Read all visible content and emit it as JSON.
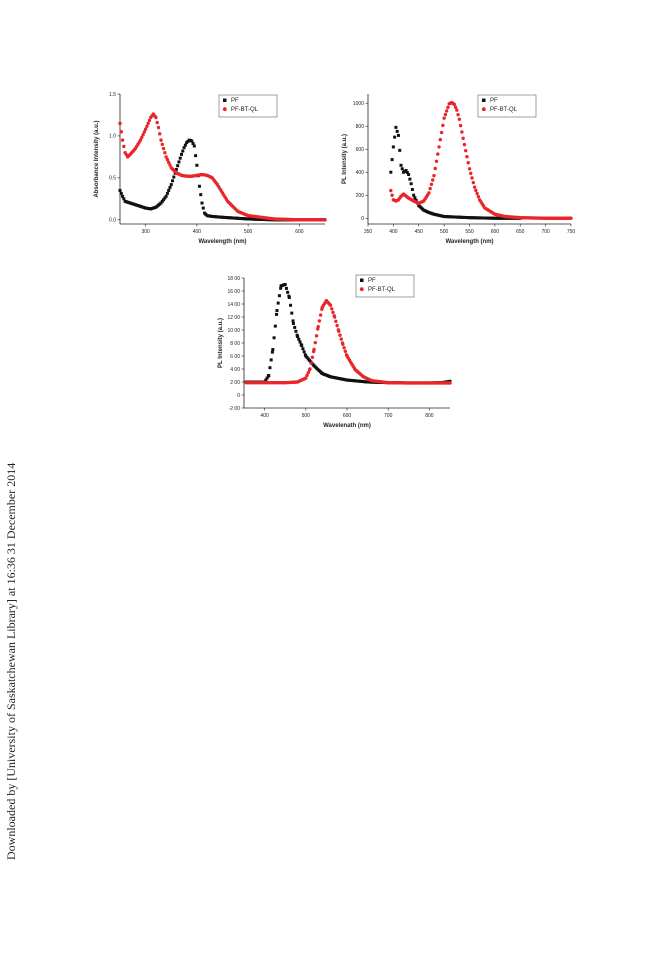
{
  "side_note": "Downloaded by [University of Saskatchewan Library] at 16:36 31 December 2014",
  "colors": {
    "PF": "#111111",
    "PF-BT-QL": "#e8262a"
  },
  "chart_data": [
    {
      "id": "abs",
      "type": "scatter",
      "xlabel": "Wavelength (nm)",
      "ylabel": "Absorbance Intensity (a.u.)",
      "xlim": [
        250,
        650
      ],
      "ylim": [
        -0.05,
        1.5
      ],
      "xticks": [
        300,
        400,
        500,
        600
      ],
      "yticks": [
        0.0,
        0.5,
        1.0,
        1.5
      ],
      "ytick_labels": [
        "0.0",
        "0.5",
        "1.0",
        "1.5"
      ],
      "legend": [
        "PF",
        "PF-BT-QL"
      ],
      "legend_position": "top-right",
      "series": [
        {
          "name": "PF",
          "x": [
            250,
            255,
            260,
            270,
            280,
            290,
            300,
            310,
            320,
            330,
            340,
            350,
            360,
            370,
            375,
            380,
            385,
            390,
            395,
            400,
            405,
            410,
            415,
            420,
            430,
            450,
            500,
            550,
            600,
            650
          ],
          "y": [
            0.35,
            0.28,
            0.22,
            0.2,
            0.18,
            0.16,
            0.14,
            0.13,
            0.15,
            0.2,
            0.28,
            0.42,
            0.6,
            0.78,
            0.86,
            0.92,
            0.95,
            0.94,
            0.88,
            0.65,
            0.4,
            0.2,
            0.08,
            0.05,
            0.04,
            0.03,
            0.01,
            0.0,
            0.0,
            0.0
          ]
        },
        {
          "name": "PF-BT-QL",
          "x": [
            250,
            255,
            260,
            265,
            270,
            280,
            290,
            300,
            310,
            315,
            320,
            325,
            330,
            340,
            350,
            360,
            370,
            380,
            390,
            400,
            410,
            420,
            430,
            440,
            450,
            460,
            480,
            500,
            550,
            600,
            650
          ],
          "y": [
            1.15,
            0.95,
            0.8,
            0.75,
            0.78,
            0.85,
            0.95,
            1.08,
            1.22,
            1.26,
            1.22,
            1.1,
            0.95,
            0.75,
            0.62,
            0.56,
            0.53,
            0.52,
            0.52,
            0.53,
            0.54,
            0.53,
            0.5,
            0.42,
            0.32,
            0.22,
            0.1,
            0.05,
            0.01,
            0.0,
            0.0
          ]
        }
      ]
    },
    {
      "id": "pl1",
      "type": "scatter",
      "xlabel": "Wavelength (nm)",
      "ylabel": "PL Intensity (a.u.)",
      "xlim": [
        350,
        750
      ],
      "ylim": [
        -50,
        1080
      ],
      "xticks": [
        350,
        400,
        450,
        500,
        550,
        600,
        650,
        700,
        750
      ],
      "yticks": [
        0,
        200,
        400,
        600,
        800,
        1000
      ],
      "legend": [
        "PF",
        "PF-BT-QL"
      ],
      "legend_position": "top-right",
      "series": [
        {
          "name": "PF",
          "x": [
            395,
            400,
            405,
            410,
            415,
            420,
            425,
            430,
            435,
            440,
            450,
            460,
            470,
            480,
            500,
            550,
            600,
            650
          ],
          "y": [
            400,
            620,
            790,
            720,
            460,
            400,
            415,
            380,
            300,
            200,
            110,
            70,
            50,
            35,
            15,
            5,
            0,
            0
          ]
        },
        {
          "name": "PF-BT-QL",
          "x": [
            395,
            400,
            405,
            410,
            415,
            420,
            430,
            440,
            450,
            460,
            470,
            480,
            490,
            500,
            510,
            515,
            520,
            525,
            530,
            540,
            550,
            560,
            570,
            580,
            600,
            620,
            650,
            700,
            750
          ],
          "y": [
            240,
            160,
            150,
            160,
            190,
            210,
            175,
            150,
            130,
            150,
            220,
            370,
            620,
            870,
            995,
            1005,
            990,
            940,
            860,
            640,
            430,
            270,
            160,
            90,
            35,
            15,
            5,
            0,
            0
          ]
        }
      ]
    },
    {
      "id": "pl2",
      "type": "scatter",
      "xlabel": "Wavelenath (nm)",
      "ylabel": "PL Intensity (a.u.)",
      "xlim": [
        350,
        850
      ],
      "ylim": [
        -200,
        1800
      ],
      "xticks": [
        400,
        500,
        600,
        700,
        800
      ],
      "yticks": [
        -200,
        0,
        200,
        400,
        600,
        800,
        1000,
        1200,
        1400,
        1600,
        1800
      ],
      "ytick_labels": [
        "-2 00",
        "0",
        "2 00",
        "4 00",
        "6 00",
        "8 00",
        "10 00",
        "12 00",
        "14 00",
        "16 00",
        "18 00"
      ],
      "legend": [
        "PF",
        "PF-BT-QL"
      ],
      "legend_position": "top-right",
      "series": [
        {
          "name": "PF",
          "x": [
            355,
            380,
            400,
            410,
            420,
            430,
            440,
            450,
            460,
            470,
            480,
            490,
            500,
            520,
            540,
            560,
            600,
            650,
            700,
            750,
            800,
            830,
            840,
            850
          ],
          "y": [
            200,
            200,
            200,
            300,
            700,
            1300,
            1680,
            1700,
            1500,
            1100,
            900,
            760,
            600,
            450,
            330,
            280,
            230,
            200,
            190,
            185,
            185,
            190,
            200,
            210
          ]
        },
        {
          "name": "PF-BT-QL",
          "x": [
            355,
            400,
            450,
            480,
            500,
            510,
            520,
            530,
            540,
            550,
            560,
            570,
            580,
            590,
            600,
            620,
            640,
            660,
            700,
            750,
            800,
            850
          ],
          "y": [
            190,
            190,
            190,
            200,
            260,
            400,
            700,
            1050,
            1350,
            1450,
            1380,
            1200,
            980,
            780,
            600,
            390,
            280,
            220,
            190,
            185,
            185,
            185
          ]
        }
      ]
    }
  ]
}
